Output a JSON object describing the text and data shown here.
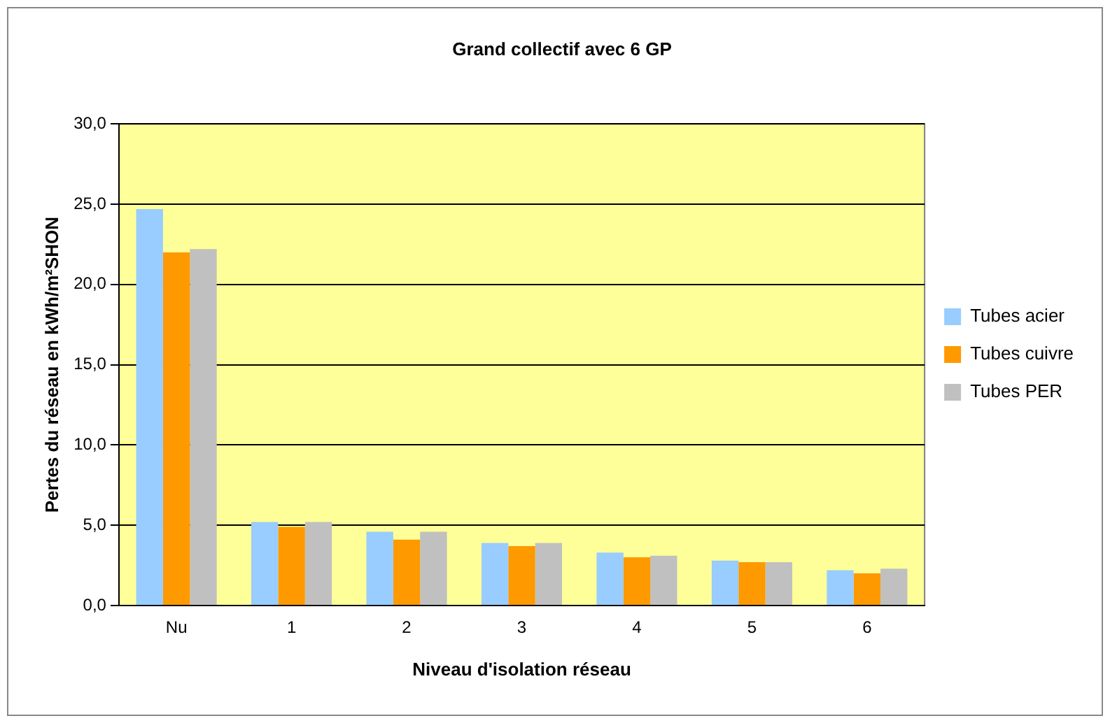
{
  "chart_data": {
    "type": "bar",
    "title": "Grand collectif avec 6 GP",
    "xlabel": "Niveau d'isolation réseau",
    "ylabel": "Pertes du réseau en kWh/m²SHON",
    "categories": [
      "Nu",
      "1",
      "2",
      "3",
      "4",
      "5",
      "6"
    ],
    "series": [
      {
        "name": "Tubes acier",
        "color": "#99ccff",
        "values": [
          24.7,
          5.2,
          4.6,
          3.9,
          3.3,
          2.8,
          2.2
        ]
      },
      {
        "name": "Tubes cuivre",
        "color": "#ff9900",
        "values": [
          22.0,
          4.9,
          4.1,
          3.7,
          3.0,
          2.7,
          2.0
        ]
      },
      {
        "name": "Tubes PER",
        "color": "#c0c0c0",
        "values": [
          22.2,
          5.2,
          4.6,
          3.9,
          3.1,
          2.7,
          2.3
        ]
      }
    ],
    "ylim": [
      0,
      30
    ],
    "yticks": [
      {
        "value": 0,
        "label": "0,0"
      },
      {
        "value": 5,
        "label": "5,0"
      },
      {
        "value": 10,
        "label": "10,0"
      },
      {
        "value": 15,
        "label": "15,0"
      },
      {
        "value": 20,
        "label": "20,0"
      },
      {
        "value": 25,
        "label": "25,0"
      },
      {
        "value": 30,
        "label": "30,0"
      }
    ],
    "grid": "y",
    "legend": "right"
  }
}
